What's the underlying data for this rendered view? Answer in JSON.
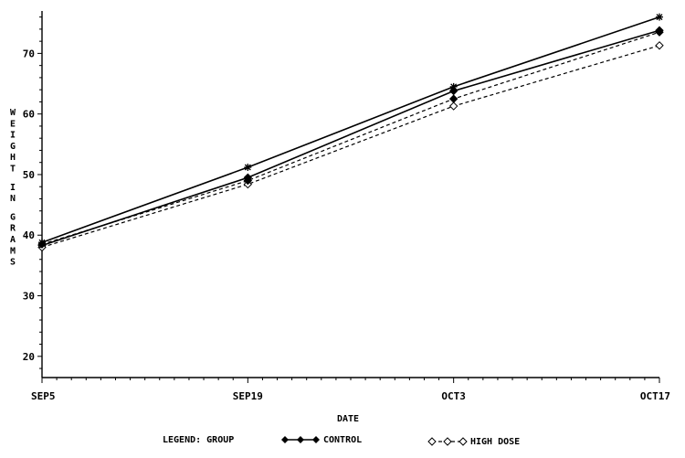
{
  "chart_data": {
    "type": "line",
    "xlabel": "DATE",
    "ylabel": "WEIGHT IN GRAMS",
    "categories": [
      "SEP5",
      "SEP19",
      "OCT3",
      "OCT17"
    ],
    "yticks": [
      "20",
      "30",
      "40",
      "50",
      "60",
      "70"
    ],
    "ylim": [
      16.5,
      77
    ],
    "grid": false,
    "legend": {
      "position": "bottom",
      "title": "LEGEND: GROUP",
      "entries": [
        "CONTROL",
        "HIGH DOSE"
      ]
    },
    "series": [
      {
        "name": "CONTROL",
        "style": "solid",
        "marker": "diamond-filled",
        "values": [
          38.3,
          49.5,
          63.8,
          73.8
        ]
      },
      {
        "name": "HIGH DOSE",
        "style": "dashed",
        "marker": "diamond-open",
        "values": [
          38.0,
          48.4,
          61.3,
          71.3
        ]
      },
      {
        "style": "solid",
        "marker": "star",
        "values": [
          38.8,
          51.2,
          64.5,
          76.0
        ]
      },
      {
        "style": "dashed",
        "marker": "diamond-filled",
        "values": [
          38.5,
          49.0,
          62.5,
          73.5
        ]
      }
    ]
  }
}
